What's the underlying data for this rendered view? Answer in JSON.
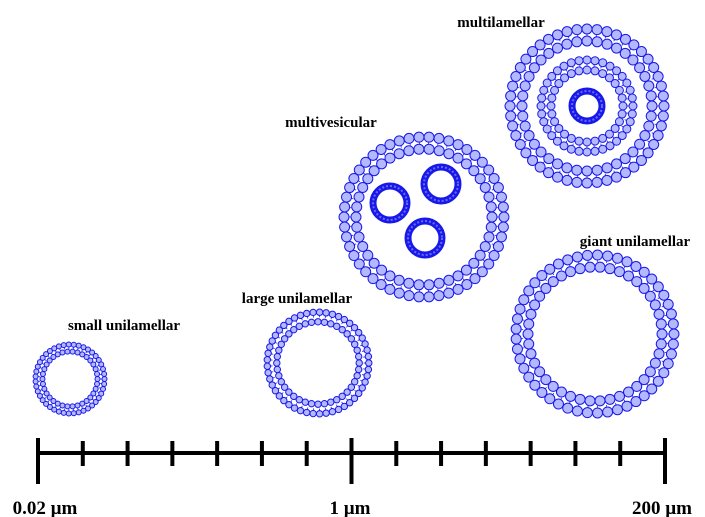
{
  "vesicles": [
    {
      "label": "small unilamellar"
    },
    {
      "label": "large unilamellar"
    },
    {
      "label": "multivesicular"
    },
    {
      "label": "multilamellar"
    },
    {
      "label": "giant unilamellar"
    }
  ],
  "scale": {
    "labels": [
      "0.02 µm",
      "1 µm",
      "200 µm"
    ]
  }
}
